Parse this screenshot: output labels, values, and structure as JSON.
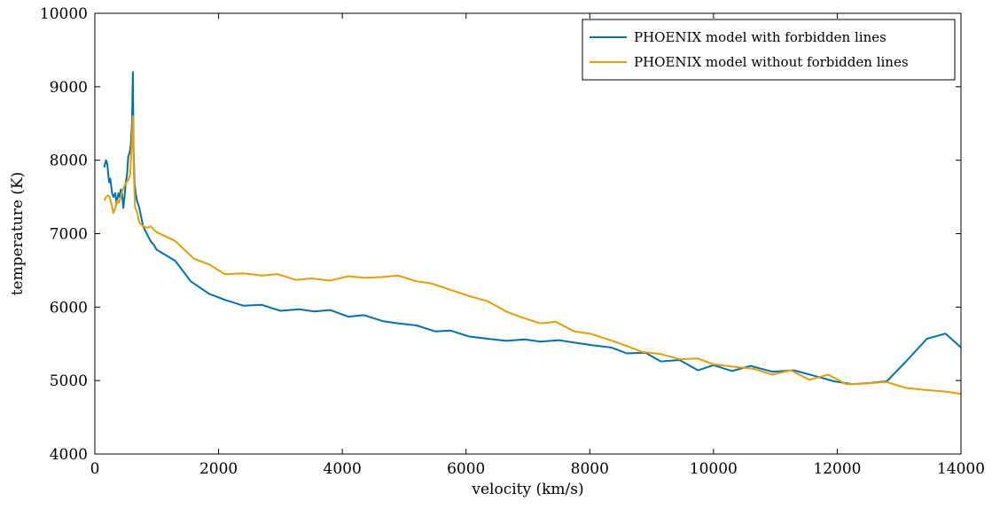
{
  "chart_data": {
    "type": "line",
    "title": "",
    "xlabel": "velocity (km/s)",
    "ylabel": "temperature (K)",
    "xlim": [
      0,
      14000
    ],
    "ylim": [
      4000,
      10000
    ],
    "xticks": [
      0,
      2000,
      4000,
      6000,
      8000,
      10000,
      12000,
      14000
    ],
    "yticks": [
      4000,
      5000,
      6000,
      7000,
      8000,
      9000,
      10000
    ],
    "grid": false,
    "legend_position": "top-right",
    "series": [
      {
        "name": "PHOENIX model with forbidden lines",
        "color": "#0072b2",
        "x": [
          150,
          180,
          200,
          230,
          250,
          280,
          300,
          330,
          350,
          380,
          400,
          420,
          440,
          460,
          480,
          500,
          520,
          540,
          560,
          580,
          600,
          615,
          625,
          640,
          660,
          680,
          720,
          780,
          840,
          900,
          950,
          1000,
          1300,
          1550,
          1850,
          2100,
          2400,
          2700,
          3000,
          3300,
          3550,
          3800,
          4100,
          4350,
          4650,
          4900,
          5200,
          5500,
          5750,
          6050,
          6350,
          6650,
          6950,
          7200,
          7500,
          7800,
          8050,
          8350,
          8600,
          8900,
          9150,
          9450,
          9750,
          10000,
          10300,
          10600,
          10950,
          11300,
          11650,
          11950,
          12250,
          12550,
          12800,
          13100,
          13450,
          13750,
          14000
        ],
        "y": [
          7900,
          8000,
          7950,
          7700,
          7750,
          7550,
          7500,
          7550,
          7400,
          7550,
          7500,
          7600,
          7550,
          7350,
          7500,
          7700,
          7800,
          8050,
          8100,
          8200,
          8500,
          9200,
          8200,
          7700,
          7550,
          7450,
          7350,
          7100,
          7000,
          6900,
          6850,
          6780,
          6630,
          6350,
          6180,
          6100,
          6020,
          6030,
          5950,
          5970,
          5940,
          5960,
          5870,
          5890,
          5810,
          5780,
          5750,
          5670,
          5680,
          5600,
          5570,
          5540,
          5560,
          5530,
          5550,
          5510,
          5480,
          5450,
          5370,
          5380,
          5260,
          5280,
          5140,
          5210,
          5130,
          5200,
          5120,
          5140,
          5060,
          4990,
          4950,
          4970,
          4990,
          5250,
          5570,
          5640,
          5450
        ]
      },
      {
        "name": "PHOENIX model without forbidden lines",
        "color": "#e69f00",
        "x": [
          150,
          180,
          210,
          240,
          270,
          300,
          330,
          360,
          390,
          420,
          450,
          480,
          510,
          540,
          570,
          600,
          615,
          630,
          650,
          680,
          720,
          780,
          850,
          900,
          960,
          1000,
          1300,
          1600,
          1850,
          2100,
          2400,
          2700,
          2950,
          3250,
          3500,
          3800,
          4100,
          4350,
          4650,
          4900,
          5200,
          5450,
          5800,
          6050,
          6350,
          6650,
          6900,
          7200,
          7450,
          7750,
          8000,
          8300,
          8600,
          8850,
          9150,
          9450,
          9750,
          10000,
          10300,
          10650,
          10950,
          11250,
          11550,
          11850,
          12150,
          12450,
          12800,
          13100,
          13450,
          13750,
          14000
        ],
        "y": [
          7450,
          7500,
          7520,
          7500,
          7400,
          7280,
          7350,
          7450,
          7420,
          7500,
          7600,
          7650,
          7700,
          7730,
          7800,
          8300,
          8600,
          7800,
          7350,
          7300,
          7150,
          7100,
          7080,
          7100,
          7050,
          7020,
          6900,
          6660,
          6580,
          6450,
          6460,
          6430,
          6450,
          6370,
          6390,
          6360,
          6420,
          6400,
          6410,
          6430,
          6350,
          6320,
          6220,
          6150,
          6080,
          5940,
          5860,
          5780,
          5800,
          5670,
          5640,
          5560,
          5470,
          5390,
          5360,
          5290,
          5300,
          5220,
          5190,
          5160,
          5080,
          5140,
          5010,
          5080,
          4950,
          4960,
          4980,
          4900,
          4870,
          4850,
          4820
        ]
      }
    ]
  }
}
